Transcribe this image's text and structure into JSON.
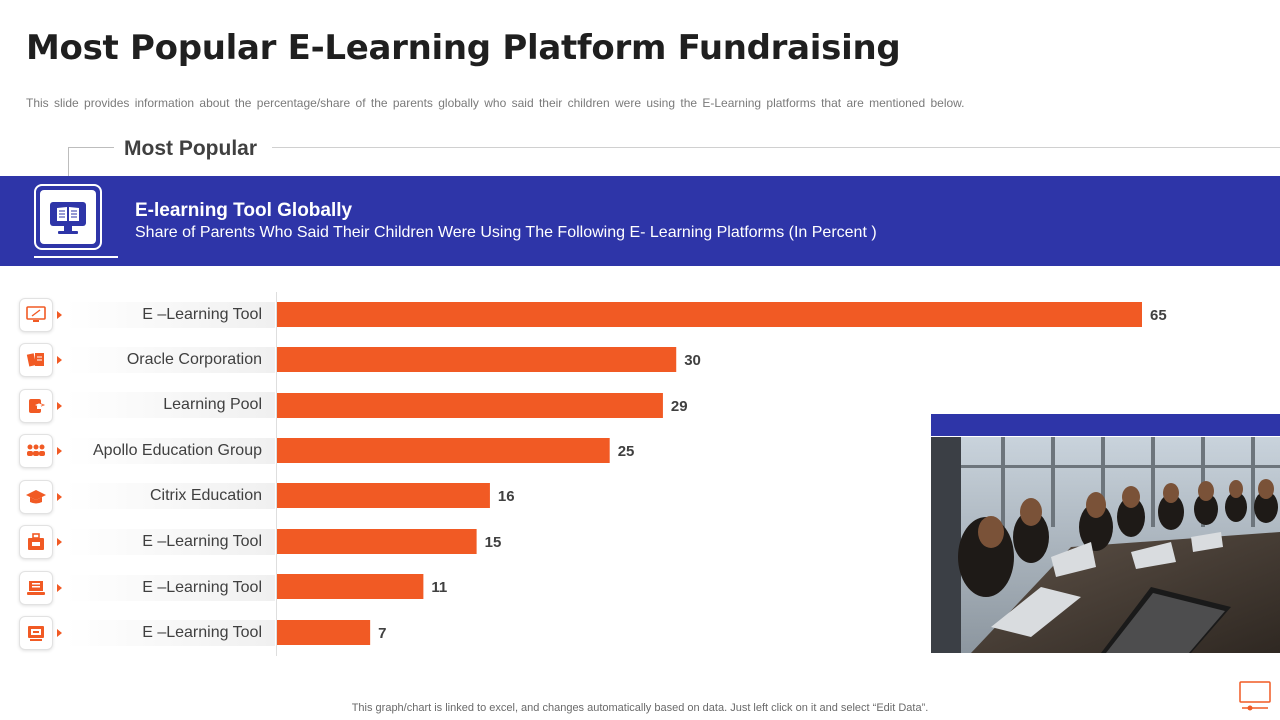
{
  "page": {
    "title": "Most Popular E-Learning Platform Fundraising",
    "subtitle": "This slide provides information about the percentage/share of the parents globally who said their children were using the E-Learning platforms that are mentioned below.",
    "section_label": "Most Popular",
    "banner_title": "E-learning Tool Globally",
    "banner_subtitle": "Share of Parents Who Said Their Children Were Using The Following E- Learning Platforms (In Percent )",
    "footer_note": "This graph/chart is linked to excel,  and changes automatically based on data. Just left click on it and select “Edit Data”."
  },
  "colors": {
    "accent": "#f15a24",
    "banner": "#2e35a8",
    "bar": "#f15a24"
  },
  "row_icons": [
    "monitor-icon",
    "books-icon",
    "tablet-graduation-icon",
    "group-icon",
    "graduation-cap-icon",
    "bag-icon",
    "laptop-icon",
    "screen-icon"
  ],
  "chart_data": {
    "type": "bar",
    "orientation": "horizontal",
    "categories": [
      "E –Learning Tool",
      "Oracle Corporation",
      "Learning Pool",
      "Apollo Education Group",
      "Citrix Education",
      "E –Learning Tool",
      "E –Learning Tool",
      "E –Learning Tool"
    ],
    "values": [
      65,
      30,
      29,
      25,
      16,
      15,
      11,
      7
    ],
    "data_labels": [
      "65",
      "30",
      "29",
      "25",
      "16",
      "15",
      "11",
      "7"
    ],
    "xlim": [
      0,
      65
    ],
    "grid": false,
    "legend": "none"
  }
}
